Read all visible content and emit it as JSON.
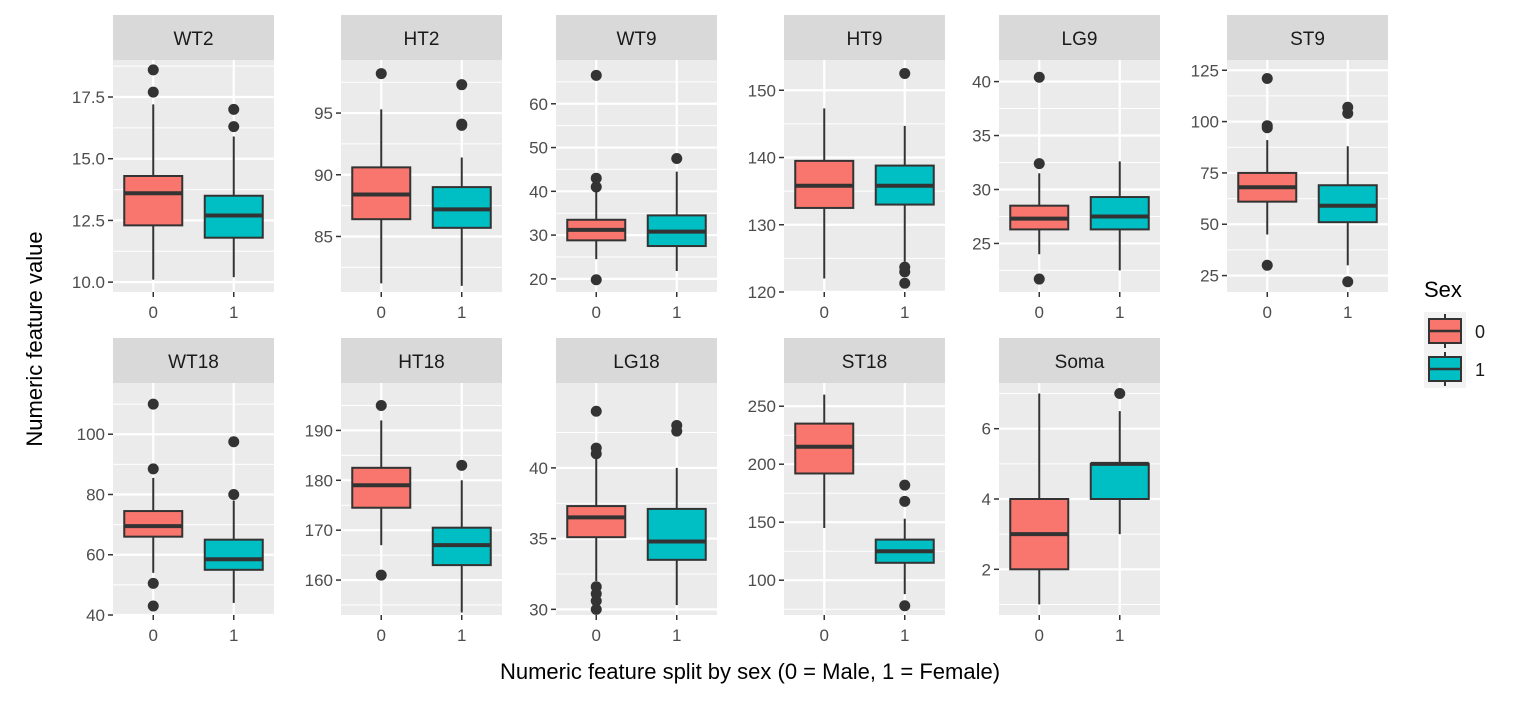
{
  "colors": {
    "male": "#F8766D",
    "female": "#00BFC4",
    "panel_bg": "#EBEBEB",
    "strip_bg": "#D9D9D9",
    "grid": "#FFFFFF",
    "ink": "#333333"
  },
  "chart_data": {
    "type": "boxplot",
    "xlabel": "Numeric feature split by sex (0 = Male, 1 = Female)",
    "ylabel": "Numeric feature value",
    "categories": [
      "0",
      "1"
    ],
    "legend": {
      "title": "Sex",
      "placement": "right",
      "entries": [
        "0",
        "1"
      ]
    },
    "grid": true,
    "panels": [
      {
        "title": "WT2",
        "ylim": [
          9.6,
          19.0
        ],
        "yticks": [
          10.0,
          12.5,
          15.0,
          17.5
        ],
        "ytick_labels": [
          "10.0",
          "12.5",
          "15.0",
          "17.5"
        ],
        "boxes": [
          {
            "group": "0",
            "min": 10.1,
            "q1": 12.3,
            "median": 13.6,
            "q3": 14.3,
            "max": 17.2,
            "outliers": [
              17.7,
              18.6
            ]
          },
          {
            "group": "1",
            "min": 10.2,
            "q1": 11.8,
            "median": 12.7,
            "q3": 13.5,
            "max": 15.9,
            "outliers": [
              16.3,
              17.0
            ]
          }
        ]
      },
      {
        "title": "HT2",
        "ylim": [
          80.5,
          99.3
        ],
        "yticks": [
          85,
          90,
          95
        ],
        "ytick_labels": [
          "85",
          "90",
          "95"
        ],
        "boxes": [
          {
            "group": "0",
            "min": 81.2,
            "q1": 86.4,
            "median": 88.4,
            "q3": 90.6,
            "max": 95.3,
            "outliers": [
              98.2
            ]
          },
          {
            "group": "1",
            "min": 81.0,
            "q1": 85.7,
            "median": 87.2,
            "q3": 89.0,
            "max": 91.4,
            "outliers": [
              94.0,
              94.1,
              97.3
            ]
          }
        ]
      },
      {
        "title": "WT9",
        "ylim": [
          17.0,
          70.0
        ],
        "yticks": [
          20,
          30,
          40,
          50,
          60
        ],
        "ytick_labels": [
          "20",
          "30",
          "40",
          "50",
          "60"
        ],
        "boxes": [
          {
            "group": "0",
            "min": 24.5,
            "q1": 28.8,
            "median": 31.2,
            "q3": 33.5,
            "max": 40.0,
            "outliers": [
              19.8,
              41.0,
              43.0,
              66.5
            ]
          },
          {
            "group": "1",
            "min": 21.8,
            "q1": 27.5,
            "median": 30.8,
            "q3": 34.5,
            "max": 44.5,
            "outliers": [
              47.5
            ]
          }
        ]
      },
      {
        "title": "HT9",
        "ylim": [
          120.0,
          154.5
        ],
        "yticks": [
          120,
          130,
          140,
          150
        ],
        "ytick_labels": [
          "120",
          "130",
          "140",
          "150"
        ],
        "boxes": [
          {
            "group": "0",
            "min": 122.0,
            "q1": 132.5,
            "median": 135.8,
            "q3": 139.5,
            "max": 147.3,
            "outliers": []
          },
          {
            "group": "1",
            "min": 124.5,
            "q1": 133.0,
            "median": 135.8,
            "q3": 138.8,
            "max": 144.7,
            "outliers": [
              121.3,
              123.0,
              123.7,
              152.5
            ]
          }
        ]
      },
      {
        "title": "LG9",
        "ylim": [
          20.5,
          42.0
        ],
        "yticks": [
          25,
          30,
          35,
          40
        ],
        "ytick_labels": [
          "25",
          "30",
          "35",
          "40"
        ],
        "boxes": [
          {
            "group": "0",
            "min": 24.0,
            "q1": 26.3,
            "median": 27.3,
            "q3": 28.5,
            "max": 31.5,
            "outliers": [
              21.7,
              32.4,
              40.4
            ]
          },
          {
            "group": "1",
            "min": 22.5,
            "q1": 26.3,
            "median": 27.5,
            "q3": 29.3,
            "max": 32.6,
            "outliers": []
          }
        ]
      },
      {
        "title": "ST9",
        "ylim": [
          17.0,
          130.0
        ],
        "yticks": [
          25,
          50,
          75,
          100,
          125
        ],
        "ytick_labels": [
          "25",
          "50",
          "75",
          "100",
          "125"
        ],
        "boxes": [
          {
            "group": "0",
            "min": 45.0,
            "q1": 61.0,
            "median": 68.0,
            "q3": 75.0,
            "max": 91.0,
            "outliers": [
              30.0,
              97.0,
              98.0,
              121.0
            ]
          },
          {
            "group": "1",
            "min": 30.0,
            "q1": 51.0,
            "median": 59.0,
            "q3": 69.0,
            "max": 88.0,
            "outliers": [
              22.0,
              104.0,
              107.0
            ]
          }
        ]
      },
      {
        "title": "WT18",
        "ylim": [
          40.0,
          117.0
        ],
        "yticks": [
          40,
          60,
          80,
          100
        ],
        "ytick_labels": [
          "40",
          "60",
          "80",
          "100"
        ],
        "boxes": [
          {
            "group": "0",
            "min": 54.0,
            "q1": 66.0,
            "median": 69.5,
            "q3": 74.5,
            "max": 85.5,
            "outliers": [
              43.0,
              50.5,
              88.5,
              110.0
            ]
          },
          {
            "group": "1",
            "min": 44.0,
            "q1": 55.0,
            "median": 58.5,
            "q3": 65.0,
            "max": 78.0,
            "outliers": [
              80.0,
              97.5
            ]
          }
        ]
      },
      {
        "title": "HT18",
        "ylim": [
          153.0,
          199.5
        ],
        "yticks": [
          160,
          170,
          180,
          190
        ],
        "ytick_labels": [
          "160",
          "170",
          "180",
          "190"
        ],
        "boxes": [
          {
            "group": "0",
            "min": 167.0,
            "q1": 174.5,
            "median": 179.0,
            "q3": 182.5,
            "max": 192.0,
            "outliers": [
              161.0,
              195.0
            ]
          },
          {
            "group": "1",
            "min": 153.5,
            "q1": 163.0,
            "median": 167.0,
            "q3": 170.5,
            "max": 180.0,
            "outliers": [
              183.0
            ]
          }
        ]
      },
      {
        "title": "LG18",
        "ylim": [
          29.6,
          46.0
        ],
        "yticks": [
          30,
          35,
          40
        ],
        "ytick_labels": [
          "30",
          "35",
          "40"
        ],
        "boxes": [
          {
            "group": "0",
            "min": 32.0,
            "q1": 35.1,
            "median": 36.5,
            "q3": 37.3,
            "max": 40.7,
            "outliers": [
              30.0,
              30.6,
              31.1,
              31.6,
              41.0,
              41.4,
              44.0
            ]
          },
          {
            "group": "1",
            "min": 30.3,
            "q1": 33.5,
            "median": 34.8,
            "q3": 37.1,
            "max": 40.0,
            "outliers": [
              42.6,
              43.0
            ]
          }
        ]
      },
      {
        "title": "ST18",
        "ylim": [
          70.0,
          270.0
        ],
        "yticks": [
          100,
          150,
          200,
          250
        ],
        "ytick_labels": [
          "100",
          "150",
          "200",
          "250"
        ],
        "boxes": [
          {
            "group": "0",
            "min": 145.0,
            "q1": 192.0,
            "median": 215.0,
            "q3": 235.0,
            "max": 260.0,
            "outliers": []
          },
          {
            "group": "1",
            "min": 88.0,
            "q1": 115.0,
            "median": 125.0,
            "q3": 135.0,
            "max": 153.0,
            "outliers": [
              78.0,
              168.0,
              182.0
            ]
          }
        ]
      },
      {
        "title": "Soma",
        "ylim": [
          0.7,
          7.3
        ],
        "yticks": [
          2,
          4,
          6
        ],
        "ytick_labels": [
          "2",
          "4",
          "6"
        ],
        "boxes": [
          {
            "group": "0",
            "min": 1.0,
            "q1": 2.0,
            "median": 3.0,
            "q3": 4.0,
            "max": 7.0,
            "outliers": []
          },
          {
            "group": "1",
            "min": 3.0,
            "q1": 4.0,
            "median": 5.0,
            "q3": 5.0,
            "max": 6.5,
            "outliers": [
              7.0
            ]
          }
        ]
      }
    ]
  }
}
